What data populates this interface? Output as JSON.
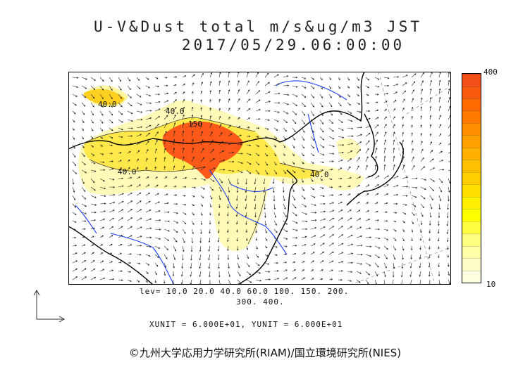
{
  "title": {
    "line1": "U-V&Dust total m/s&ug/m3 JST",
    "line2": "2017/05/29.06:00:00"
  },
  "colorbar": {
    "max_label": "400",
    "min_label": "10",
    "colors": [
      "#fefee0",
      "#fefec6",
      "#fefea6",
      "#fefe80",
      "#fefe40",
      "#fefe00",
      "#fef000",
      "#fee000",
      "#fed000",
      "#fec000",
      "#feb000",
      "#fea000",
      "#fe9000",
      "#fe7a00",
      "#fe6a00",
      "#f85a10",
      "#f05018"
    ]
  },
  "map": {
    "contour_labels": [
      "40.0",
      "40.0",
      "150",
      "40.0",
      "40.0"
    ],
    "colors": {
      "land_border": "#000000",
      "river": "#1a3cff",
      "frame": "#000000",
      "high_dust": "#ff5a1a",
      "mid_dust": "#ffe230",
      "low_dust": "#fff9b0"
    }
  },
  "footer": {
    "levels_line1": "lev= 10.0 20.0 40.0 60.0 100. 150. 200.",
    "levels_line2": "300. 400.",
    "units": "XUNIT = 6.000E+01, YUNIT = 6.000E+01",
    "credit": "©九州大学応用力学研究所(RIAM)/国立環境研究所(NIES)"
  },
  "reference_vector_icon": "arrow-axes-icon"
}
